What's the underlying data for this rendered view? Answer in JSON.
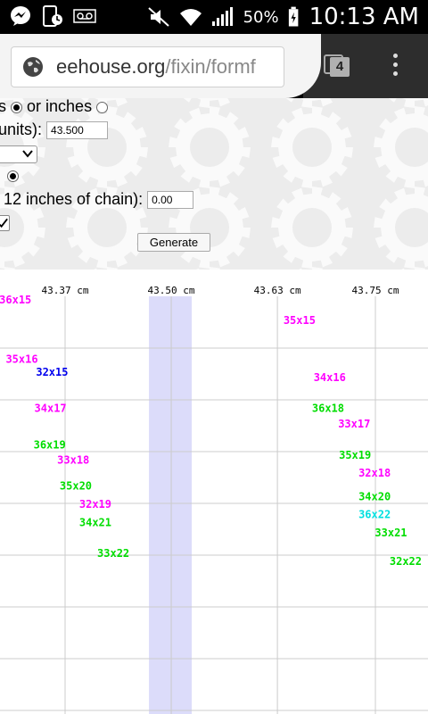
{
  "status_bar": {
    "icons_left": [
      "messenger-icon",
      "phone-notification-icon",
      "voicemail-icon"
    ],
    "icons_right": [
      "mute-icon",
      "wifi-icon",
      "signal-icon"
    ],
    "battery": "50%",
    "time": "10:13 AM"
  },
  "browser": {
    "url_domain": "eehouse.org",
    "url_path": "/fixin/formf",
    "tab_count": "4"
  },
  "form": {
    "units_choice_suffix": "s",
    "units_inches_label": "or inches",
    "length_label": "units):",
    "length_value": "43.500",
    "chain_label": "12 inches of chain):",
    "chain_value": "0.00",
    "generate_label": "Generate"
  },
  "colors": {
    "magenta": "#ff00ff",
    "blue": "#0000ee",
    "green": "#00dd00",
    "cyan": "#00e0e0",
    "highlight": "#dcdcfa"
  },
  "chart_data": {
    "type": "scatter",
    "x_tick_labels": [
      "43.37 cm",
      "43.50 cm",
      "43.63 cm",
      "43.75 cm"
    ],
    "x_ticks": [
      43.37,
      43.5,
      43.63,
      43.75
    ],
    "highlight_x": 43.5,
    "grid": true,
    "points": [
      {
        "label": "36x15",
        "x": 43.309,
        "row": 0.05,
        "color": "magenta"
      },
      {
        "label": "35x15",
        "x": 43.657,
        "row": 0.45,
        "color": "magenta"
      },
      {
        "label": "35x16",
        "x": 43.317,
        "row": 1.2,
        "color": "magenta"
      },
      {
        "label": "32x15",
        "x": 43.354,
        "row": 1.45,
        "color": "blue"
      },
      {
        "label": "34x16",
        "x": 43.694,
        "row": 1.55,
        "color": "magenta"
      },
      {
        "label": "34x17",
        "x": 43.352,
        "row": 2.15,
        "color": "magenta"
      },
      {
        "label": "36x18",
        "x": 43.692,
        "row": 2.15,
        "color": "green"
      },
      {
        "label": "33x17",
        "x": 43.724,
        "row": 2.45,
        "color": "magenta"
      },
      {
        "label": "36x19",
        "x": 43.351,
        "row": 2.85,
        "color": "green"
      },
      {
        "label": "35x19",
        "x": 43.725,
        "row": 3.05,
        "color": "green"
      },
      {
        "label": "33x18",
        "x": 43.38,
        "row": 3.15,
        "color": "magenta"
      },
      {
        "label": "32x18",
        "x": 43.749,
        "row": 3.4,
        "color": "magenta"
      },
      {
        "label": "35x20",
        "x": 43.383,
        "row": 3.65,
        "color": "green"
      },
      {
        "label": "34x20",
        "x": 43.749,
        "row": 3.85,
        "color": "green"
      },
      {
        "label": "32x19",
        "x": 43.407,
        "row": 4.0,
        "color": "magenta"
      },
      {
        "label": "36x22",
        "x": 43.749,
        "row": 4.2,
        "color": "cyan"
      },
      {
        "label": "34x21",
        "x": 43.407,
        "row": 4.35,
        "color": "green"
      },
      {
        "label": "33x21",
        "x": 43.769,
        "row": 4.55,
        "color": "green"
      },
      {
        "label": "33x22",
        "x": 43.429,
        "row": 4.95,
        "color": "green"
      },
      {
        "label": "32x22",
        "x": 43.787,
        "row": 5.1,
        "color": "green"
      }
    ]
  }
}
